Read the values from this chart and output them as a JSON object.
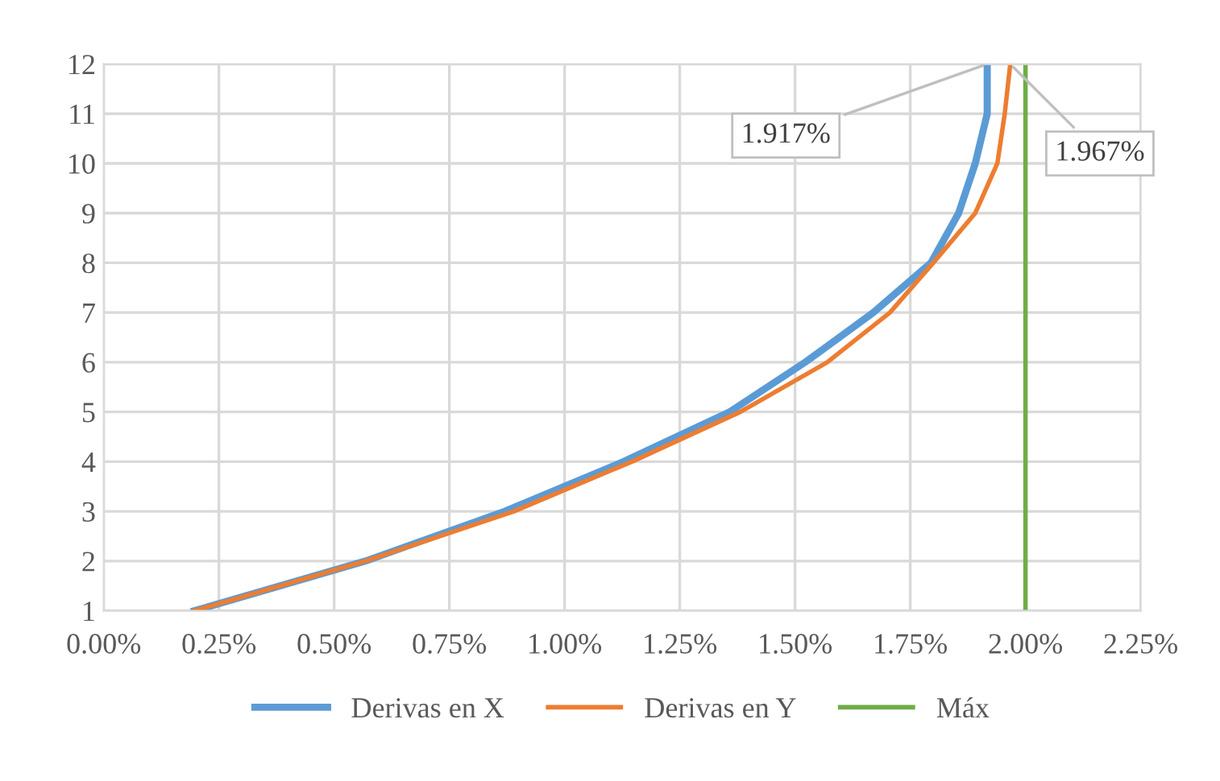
{
  "chart_data": {
    "type": "line",
    "xlim": [
      0,
      2.25
    ],
    "ylim": [
      1,
      12
    ],
    "xticks": [
      {
        "value": 0,
        "label": "0.00%"
      },
      {
        "value": 0.25,
        "label": "0.25%"
      },
      {
        "value": 0.5,
        "label": "0.50%"
      },
      {
        "value": 0.75,
        "label": "0.75%"
      },
      {
        "value": 1,
        "label": "1.00%"
      },
      {
        "value": 1.25,
        "label": "1.25%"
      },
      {
        "value": 1.5,
        "label": "1.50%"
      },
      {
        "value": 1.75,
        "label": "1.75%"
      },
      {
        "value": 2,
        "label": "2.00%"
      },
      {
        "value": 2.25,
        "label": "2.25%"
      }
    ],
    "yticks": [
      1,
      2,
      3,
      4,
      5,
      6,
      7,
      8,
      9,
      10,
      11,
      12
    ],
    "grid": true,
    "legend": "bottom",
    "marker": "none",
    "line_style": "solid",
    "series": [
      {
        "name": "Derivas en X",
        "color": "#5b9bd5",
        "x": [
          0.197,
          0.568,
          0.87,
          1.128,
          1.358,
          1.522,
          1.67,
          1.795,
          1.855,
          1.891,
          1.917,
          1.917
        ],
        "values": [
          1,
          2,
          3,
          4,
          5,
          6,
          7,
          8,
          9,
          10,
          11,
          12
        ]
      },
      {
        "name": "Derivas en Y",
        "color": "#ed7d31",
        "x": [
          0.197,
          0.568,
          0.89,
          1.146,
          1.381,
          1.57,
          1.706,
          1.8,
          1.891,
          1.939,
          1.955,
          1.967
        ],
        "values": [
          1,
          2,
          3,
          4,
          5,
          6,
          7,
          8,
          9,
          10,
          11,
          12
        ]
      },
      {
        "name": "Máx",
        "color": "#70ad47",
        "x": [
          2,
          2
        ],
        "values": [
          1,
          12
        ]
      }
    ],
    "annotations": [
      {
        "text": "1.917%",
        "x": 1.917,
        "y": 12
      },
      {
        "text": "1.967%",
        "x": 1.967,
        "y": 12
      }
    ]
  }
}
